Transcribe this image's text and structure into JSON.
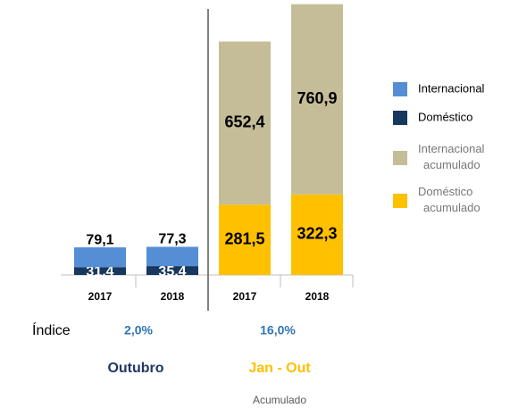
{
  "chart_data": {
    "type": "stacked_bar",
    "categories": [
      "2017",
      "2018",
      "2017",
      "2018"
    ],
    "series": [
      {
        "name": "Internacional",
        "color": "#558ed5",
        "values": [
          79.1,
          77.3,
          null,
          null
        ],
        "value_labels": [
          "79,1",
          "77,3",
          null,
          null
        ]
      },
      {
        "name": "Doméstico",
        "color": "#17375e",
        "values": [
          31.4,
          35.4,
          null,
          null
        ],
        "value_labels": [
          "31,4",
          "35,4",
          null,
          null
        ]
      },
      {
        "name": "Internacional acumulado",
        "color": "#c4bd97",
        "values": [
          null,
          null,
          652.4,
          760.9
        ],
        "value_labels": [
          null,
          null,
          "652,4",
          "760,9"
        ]
      },
      {
        "name": "Doméstico acumulado",
        "color": "#ffc000",
        "values": [
          null,
          null,
          281.5,
          322.3
        ],
        "value_labels": [
          null,
          null,
          "281,5",
          "322,3"
        ]
      }
    ],
    "index_title": "Índice",
    "index_labels": [
      "2,0%",
      "16,0%"
    ],
    "groups": [
      "Outubro",
      "Jan - Out"
    ],
    "group_subtitle": "Acumulado"
  }
}
